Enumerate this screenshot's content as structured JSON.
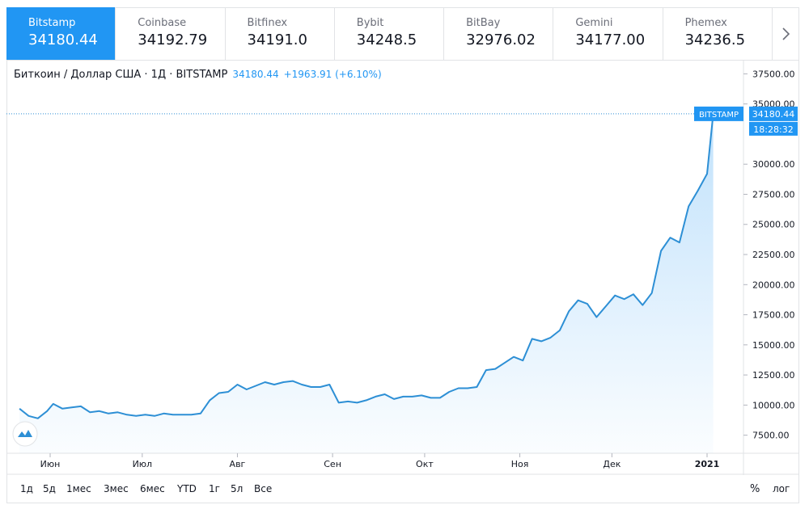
{
  "exchanges": [
    {
      "name": "Bitstamp",
      "price": "34180.44"
    },
    {
      "name": "Coinbase",
      "price": "34192.79"
    },
    {
      "name": "Bitfinex",
      "price": "34191.0"
    },
    {
      "name": "Bybit",
      "price": "34248.5"
    },
    {
      "name": "BitBay",
      "price": "32976.02"
    },
    {
      "name": "Gemini",
      "price": "34177.00"
    },
    {
      "name": "Phemex",
      "price": "34236.5"
    }
  ],
  "header": {
    "symbol": "Биткоин / Доллар США · 1Д · BITSTAMP",
    "last": "34180.44",
    "change": "+1963.91 (+6.10%)"
  },
  "price_tag": {
    "exchange": "BITSTAMP",
    "price": "34180.44",
    "time": "18:28:32"
  },
  "x_labels": [
    "Июн",
    "Июл",
    "Авг",
    "Сен",
    "Окт",
    "Ноя",
    "Дек",
    "2021"
  ],
  "ranges": [
    "1д",
    "5д",
    "1мес",
    "3мес",
    "6мес",
    "YTD",
    "1г",
    "5л",
    "Все"
  ],
  "scale_modes": {
    "percent": "%",
    "log": "лог"
  },
  "colors": {
    "accent": "#2196f3",
    "line": "#2d8fd5",
    "border": "#e1e3e6"
  },
  "chart_data": {
    "type": "area",
    "y_ticks": [
      7500,
      10000,
      12500,
      15000,
      17500,
      20000,
      22500,
      25000,
      27500,
      30000,
      35000,
      37500
    ],
    "ylim": [
      6000,
      38600
    ],
    "x_ticks": [
      "Июн",
      "Июл",
      "Авг",
      "Сен",
      "Окт",
      "Ноя",
      "Дек",
      "2021"
    ],
    "series": [
      {
        "x": [
          "2020-05-22",
          "2020-05-25",
          "2020-05-28",
          "2020-05-31",
          "2020-06-02",
          "2020-06-05",
          "2020-06-08",
          "2020-06-11",
          "2020-06-14",
          "2020-06-17",
          "2020-06-20",
          "2020-06-23",
          "2020-06-26",
          "2020-06-29",
          "2020-07-02",
          "2020-07-05",
          "2020-07-08",
          "2020-07-11",
          "2020-07-14",
          "2020-07-17",
          "2020-07-20",
          "2020-07-23",
          "2020-07-26",
          "2020-07-29",
          "2020-08-01",
          "2020-08-04",
          "2020-08-07",
          "2020-08-10",
          "2020-08-13",
          "2020-08-16",
          "2020-08-19",
          "2020-08-22",
          "2020-08-25",
          "2020-08-28",
          "2020-08-31",
          "2020-09-03",
          "2020-09-06",
          "2020-09-09",
          "2020-09-12",
          "2020-09-15",
          "2020-09-18",
          "2020-09-21",
          "2020-09-24",
          "2020-09-27",
          "2020-09-30",
          "2020-10-03",
          "2020-10-06",
          "2020-10-09",
          "2020-10-12",
          "2020-10-15",
          "2020-10-18",
          "2020-10-21",
          "2020-10-24",
          "2020-10-27",
          "2020-10-30",
          "2020-11-02",
          "2020-11-05",
          "2020-11-08",
          "2020-11-11",
          "2020-11-14",
          "2020-11-17",
          "2020-11-20",
          "2020-11-23",
          "2020-11-26",
          "2020-11-29",
          "2020-12-02",
          "2020-12-05",
          "2020-12-08",
          "2020-12-11",
          "2020-12-14",
          "2020-12-17",
          "2020-12-20",
          "2020-12-23",
          "2020-12-26",
          "2020-12-29",
          "2021-01-01",
          "2021-01-03"
        ],
        "values": [
          9700,
          9100,
          8900,
          9500,
          10100,
          9700,
          9800,
          9900,
          9400,
          9500,
          9300,
          9400,
          9200,
          9100,
          9200,
          9100,
          9300,
          9200,
          9200,
          9200,
          9300,
          10400,
          11000,
          11100,
          11700,
          11300,
          11600,
          11900,
          11700,
          11900,
          12000,
          11700,
          11500,
          11500,
          11700,
          10200,
          10300,
          10200,
          10400,
          10700,
          10900,
          10500,
          10700,
          10700,
          10800,
          10600,
          10600,
          11100,
          11400,
          11400,
          11500,
          12900,
          13000,
          13500,
          14000,
          13700,
          15500,
          15300,
          15600,
          16200,
          17800,
          18700,
          18400,
          17300,
          18200,
          19100,
          18800,
          19200,
          18300,
          19300,
          22800,
          23900,
          23500,
          26500,
          27800,
          29200,
          34180
        ]
      }
    ]
  }
}
